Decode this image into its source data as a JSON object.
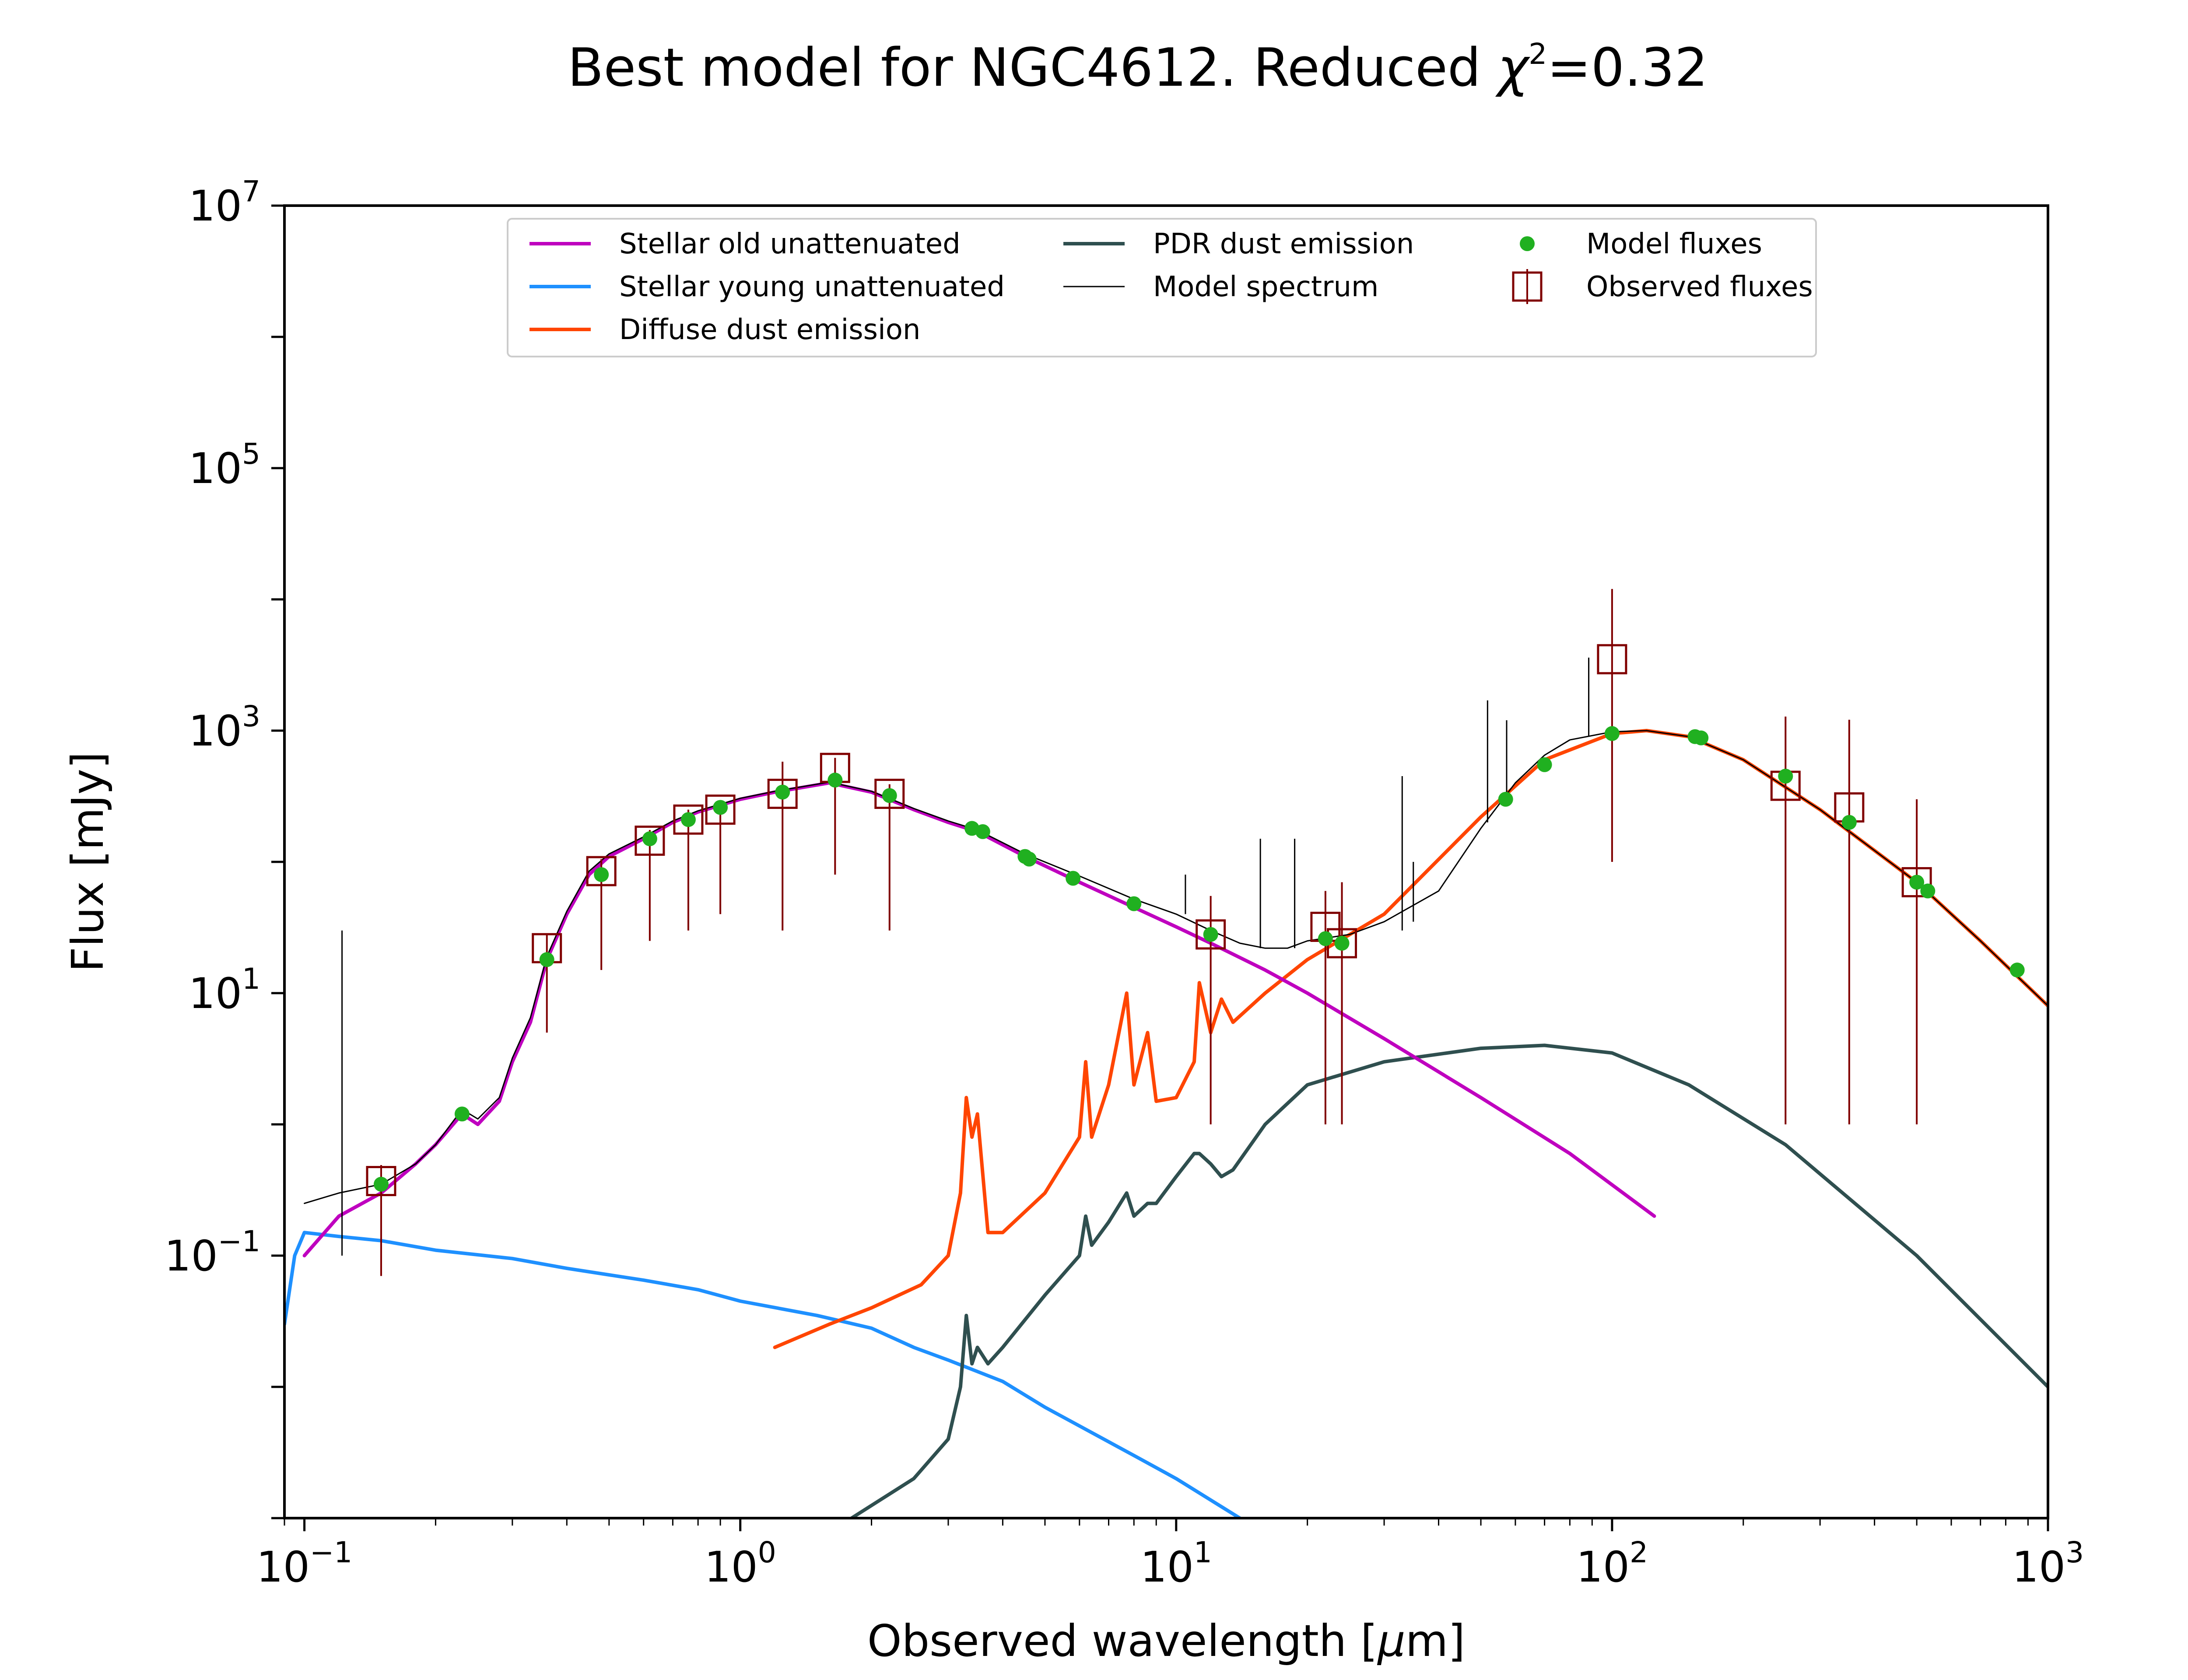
{
  "chart_data": {
    "type": "line",
    "title": "Best model for NGC4612. Reduced χ²=0.32",
    "title_parts": {
      "lead": "Best model for NGC4612. Reduced ",
      "chi": "χ",
      "exp": "2",
      "tail": "=0.32"
    },
    "xlabel": "Observed wavelength [μm]",
    "xlabel_parts": {
      "lead": "Observed wavelength [",
      "mu": "μ",
      "tail": "m]"
    },
    "ylabel": "Flux [mJy]",
    "xscale": "log",
    "yscale": "log",
    "xlim": [
      0.09,
      1000
    ],
    "ylim": [
      0.001,
      10000000
    ],
    "x_ticks": [
      {
        "value": 0.1,
        "base": "10",
        "exp": "−1"
      },
      {
        "value": 1,
        "base": "10",
        "exp": "0"
      },
      {
        "value": 10,
        "base": "10",
        "exp": "1"
      },
      {
        "value": 100,
        "base": "10",
        "exp": "2"
      },
      {
        "value": 1000,
        "base": "10",
        "exp": "3"
      }
    ],
    "y_ticks": [
      {
        "value": 0.1,
        "base": "10",
        "exp": "−1"
      },
      {
        "value": 10,
        "base": "10",
        "exp": "1"
      },
      {
        "value": 1000,
        "base": "10",
        "exp": "3"
      },
      {
        "value": 100000,
        "base": "10",
        "exp": "5"
      },
      {
        "value": 10000000,
        "base": "10",
        "exp": "7"
      }
    ],
    "grid": false,
    "legend_position": "top-center",
    "colors": {
      "stellar_old": "#bf00bf",
      "stellar_young": "#1e90ff",
      "diffuse_dust": "#ff4500",
      "pdr_dust": "#2f4f4f",
      "model_spectrum": "#000000",
      "model_fluxes": "#20b020",
      "observed_fluxes": "#800000"
    },
    "series": [
      {
        "key": "stellar_old",
        "name": "Stellar old unattenuated",
        "kind": "line",
        "x": [
          0.1,
          0.12,
          0.15,
          0.18,
          0.2,
          0.23,
          0.25,
          0.28,
          0.3,
          0.33,
          0.36,
          0.4,
          0.45,
          0.5,
          0.6,
          0.7,
          0.8,
          1.0,
          1.2,
          1.6,
          2.0,
          2.5,
          3.0,
          3.5,
          4.5,
          6,
          8,
          10,
          12,
          16,
          20,
          30,
          50,
          80,
          125
        ],
        "y": [
          0.1,
          0.2,
          0.3,
          0.5,
          0.7,
          1.2,
          1.0,
          1.5,
          3,
          6,
          18,
          40,
          80,
          110,
          150,
          200,
          240,
          300,
          340,
          400,
          340,
          250,
          200,
          170,
          110,
          70,
          45,
          32,
          24,
          15,
          10,
          4.5,
          1.6,
          0.6,
          0.2
        ]
      },
      {
        "key": "stellar_young",
        "name": "Stellar young unattenuated",
        "kind": "line",
        "x": [
          0.09,
          0.095,
          0.1,
          0.12,
          0.15,
          0.2,
          0.3,
          0.4,
          0.6,
          0.8,
          1.0,
          1.5,
          2.0,
          2.5,
          3.0,
          4.0,
          5.0,
          8.0,
          10.0,
          14.0
        ],
        "y": [
          0.03,
          0.1,
          0.15,
          0.14,
          0.13,
          0.11,
          0.095,
          0.08,
          0.065,
          0.055,
          0.045,
          0.035,
          0.028,
          0.02,
          0.016,
          0.011,
          0.007,
          0.003,
          0.002,
          0.001
        ]
      },
      {
        "key": "diffuse_dust",
        "name": "Diffuse dust emission",
        "kind": "line",
        "x": [
          1.2,
          1.6,
          2.0,
          2.6,
          3.0,
          3.2,
          3.3,
          3.4,
          3.5,
          3.7,
          4.0,
          5.0,
          6.0,
          6.2,
          6.4,
          7.0,
          7.7,
          8.0,
          8.6,
          9.0,
          10.0,
          11.0,
          11.3,
          12.0,
          12.7,
          13.5,
          16.0,
          20.0,
          30.0,
          50.0,
          70.0,
          100.0,
          120.0,
          150.0,
          200.0,
          300.0,
          500.0,
          700.0,
          1000.0
        ],
        "y": [
          0.02,
          0.03,
          0.04,
          0.06,
          0.1,
          0.3,
          1.6,
          0.8,
          1.2,
          0.15,
          0.15,
          0.3,
          0.8,
          3,
          0.8,
          2,
          10,
          2,
          5,
          1.5,
          1.6,
          3,
          12,
          5,
          9,
          6,
          10,
          18,
          40,
          220,
          600,
          950,
          1000,
          900,
          600,
          250,
          70,
          25,
          8
        ]
      },
      {
        "key": "pdr_dust",
        "name": "PDR dust emission",
        "kind": "line",
        "x": [
          1.8,
          2.5,
          3.0,
          3.2,
          3.3,
          3.4,
          3.5,
          3.7,
          4.0,
          5.0,
          6.0,
          6.2,
          6.4,
          7.0,
          7.7,
          8.0,
          8.6,
          9.0,
          10.0,
          11.0,
          11.3,
          12.0,
          12.7,
          13.5,
          16.0,
          20.0,
          30.0,
          50.0,
          70.0,
          100.0,
          150.0,
          250.0,
          500.0,
          1000.0
        ],
        "y": [
          0.001,
          0.002,
          0.004,
          0.01,
          0.035,
          0.015,
          0.02,
          0.015,
          0.02,
          0.05,
          0.1,
          0.2,
          0.12,
          0.18,
          0.3,
          0.2,
          0.25,
          0.25,
          0.4,
          0.6,
          0.6,
          0.5,
          0.4,
          0.45,
          1.0,
          2.0,
          3.0,
          3.8,
          4.0,
          3.5,
          2.0,
          0.7,
          0.1,
          0.01
        ]
      },
      {
        "key": "model_spectrum",
        "name": "Model spectrum",
        "kind": "line",
        "x": [
          0.1,
          0.12,
          0.15,
          0.18,
          0.2,
          0.23,
          0.25,
          0.28,
          0.3,
          0.33,
          0.36,
          0.4,
          0.45,
          0.5,
          0.6,
          0.7,
          0.8,
          1.0,
          1.2,
          1.6,
          2.0,
          2.5,
          3.0,
          3.5,
          4.5,
          6,
          8,
          10,
          12,
          14,
          16,
          18,
          20,
          25,
          30,
          40,
          50,
          60,
          70,
          80,
          100,
          120,
          150,
          200,
          300,
          500,
          700,
          1000
        ],
        "y": [
          0.25,
          0.3,
          0.35,
          0.5,
          0.7,
          1.3,
          1.1,
          1.6,
          3.2,
          6.5,
          19,
          42,
          85,
          115,
          155,
          205,
          245,
          305,
          345,
          405,
          345,
          255,
          205,
          175,
          115,
          78,
          52,
          40,
          30,
          24,
          22,
          22,
          25,
          28,
          35,
          60,
          180,
          400,
          650,
          850,
          980,
          1000,
          900,
          600,
          250,
          70,
          25,
          8
        ]
      },
      {
        "key": "model_fluxes",
        "name": "Model fluxes",
        "kind": "points",
        "x": [
          0.15,
          0.23,
          0.36,
          0.48,
          0.62,
          0.76,
          0.9,
          1.25,
          1.65,
          2.2,
          3.4,
          3.6,
          4.5,
          4.6,
          5.8,
          8.0,
          12.0,
          22.0,
          24.0,
          57.0,
          70.0,
          100.0,
          155.0,
          160.0,
          250.0,
          350.0,
          500.0,
          530.0,
          850.0
        ],
        "y": [
          0.35,
          1.2,
          18,
          80,
          150,
          210,
          260,
          340,
          420,
          320,
          180,
          170,
          110,
          105,
          75,
          48,
          28,
          26,
          24,
          300,
          550,
          950,
          900,
          880,
          450,
          200,
          70,
          60,
          15
        ]
      },
      {
        "key": "observed_fluxes",
        "name": "Observed fluxes",
        "kind": "errorbars",
        "x": [
          0.15,
          0.36,
          0.48,
          0.62,
          0.76,
          0.9,
          1.25,
          1.65,
          2.2,
          12.0,
          22.0,
          24.0,
          100.0,
          250.0,
          350.0,
          500.0
        ],
        "y": [
          0.37,
          22,
          85,
          145,
          210,
          250,
          330,
          520,
          330,
          28,
          32,
          24,
          3500,
          380,
          260,
          70
        ],
        "yerr_low": [
          0.3,
          17,
          70,
          120,
          180,
          210,
          300,
          440,
          300,
          27,
          31,
          23,
          3400,
          379,
          259,
          69
        ],
        "yerr_high": [
          0.12,
          6,
          20,
          30,
          40,
          40,
          250,
          100,
          60,
          27,
          28,
          46,
          8500,
          900,
          950,
          230
        ]
      }
    ],
    "lines": [
      {
        "x": 0.122,
        "y_low": 0.1,
        "y_high": 30
      },
      {
        "x": 10.5,
        "y_low": 40,
        "y_high": 80
      },
      {
        "x": 15.6,
        "y_low": 22,
        "y_high": 150
      },
      {
        "x": 18.7,
        "y_low": 22,
        "y_high": 150
      },
      {
        "x": 33,
        "y_low": 30,
        "y_high": 450
      },
      {
        "x": 35,
        "y_low": 35,
        "y_high": 100
      },
      {
        "x": 51.8,
        "y_low": 200,
        "y_high": 1700
      },
      {
        "x": 57.3,
        "y_low": 300,
        "y_high": 1200
      },
      {
        "x": 88.4,
        "y_low": 900,
        "y_high": 3600
      }
    ]
  }
}
